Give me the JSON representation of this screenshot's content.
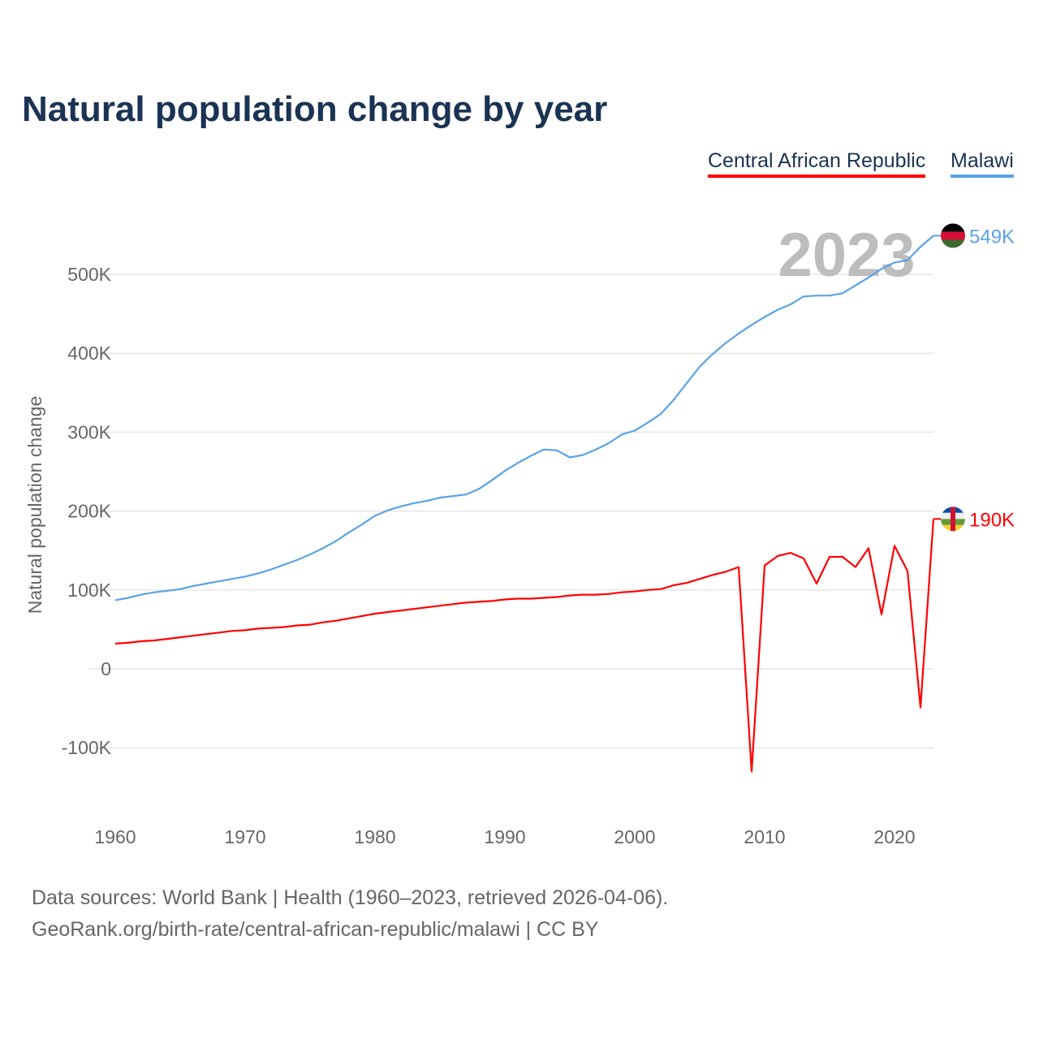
{
  "title": "Natural population change by year",
  "legend": [
    {
      "label": "Central African Republic",
      "color": "#ff0000"
    },
    {
      "label": "Malawi",
      "color": "#5aa2e8"
    }
  ],
  "year_overlay": "2023",
  "footer": {
    "line1": "Data sources: World Bank | Health (1960–2023, retrieved 2026-04-06).",
    "line2": "GeoRank.org/birth-rate/central-african-republic/malawi | CC BY"
  },
  "chart_data": {
    "type": "line",
    "title": "Natural population change by year",
    "xlabel": "",
    "ylabel": "Natural population change",
    "xlim": [
      1960,
      2023
    ],
    "ylim": [
      -150000,
      600000
    ],
    "x_ticks": [
      1960,
      1970,
      1980,
      1990,
      2000,
      2010,
      2020
    ],
    "y_ticks": [
      -100000,
      0,
      100000,
      200000,
      300000,
      400000,
      500000
    ],
    "y_tick_labels": [
      "-100K",
      "0",
      "100K",
      "200K",
      "300K",
      "400K",
      "500K"
    ],
    "grid": true,
    "legend_position": "top-right",
    "x_start": 1960,
    "series": [
      {
        "name": "Central African Republic",
        "color": "#ff0000",
        "end_label": "190K",
        "flag": "central-african-republic-flag",
        "values_k": [
          32,
          33,
          35,
          36,
          38,
          40,
          42,
          44,
          46,
          48,
          49,
          51,
          52,
          53,
          55,
          56,
          59,
          61,
          64,
          67,
          70,
          72,
          74,
          76,
          78,
          80,
          82,
          84,
          85,
          86,
          88,
          89,
          89,
          90,
          91,
          93,
          94,
          94,
          95,
          97,
          98,
          100,
          101,
          106,
          109,
          114,
          119,
          123,
          129,
          -130,
          131,
          143,
          147,
          140,
          108,
          142,
          142,
          129,
          153,
          69,
          156,
          124,
          -49,
          190
        ]
      },
      {
        "name": "Malawi",
        "color": "#5aa2e8",
        "end_label": "549K",
        "flag": "malawi-flag",
        "values_k": [
          87,
          90,
          94,
          97,
          99,
          101,
          105,
          108,
          111,
          114,
          117,
          121,
          126,
          132,
          138,
          145,
          153,
          162,
          173,
          183,
          194,
          201,
          206,
          210,
          213,
          217,
          219,
          221,
          228,
          239,
          251,
          261,
          270,
          278,
          277,
          268,
          271,
          278,
          286,
          297,
          302,
          312,
          323,
          341,
          362,
          383,
          399,
          413,
          425,
          436,
          446,
          455,
          462,
          472,
          473,
          473,
          476,
          486,
          496,
          507,
          515,
          518,
          535,
          549
        ]
      }
    ]
  }
}
